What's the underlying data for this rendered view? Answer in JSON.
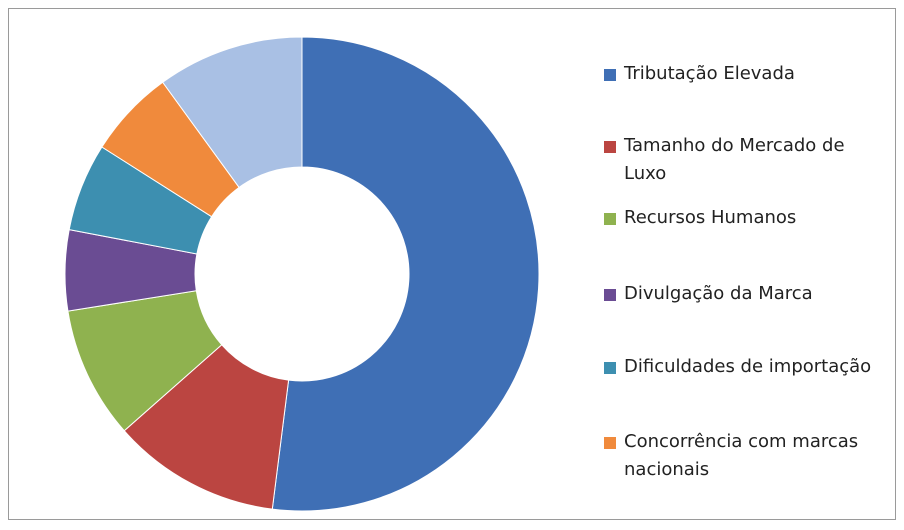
{
  "chart_data": {
    "type": "donut",
    "categories": [
      "Tributação Elevada",
      "Tamanho do Mercado de Luxo",
      "Recursos Humanos",
      "Divulgação da Marca",
      "Dificuldades de importação",
      "Concorrência com marcas nacionais",
      null
    ],
    "values": [
      52,
      11.5,
      9,
      5.5,
      6,
      6,
      10
    ],
    "colors": [
      "#3f6fb5",
      "#bb4541",
      "#8fb24f",
      "#6a4c93",
      "#3d8fb0",
      "#f08a3c",
      "#a9c0e4"
    ],
    "legend": "right"
  }
}
